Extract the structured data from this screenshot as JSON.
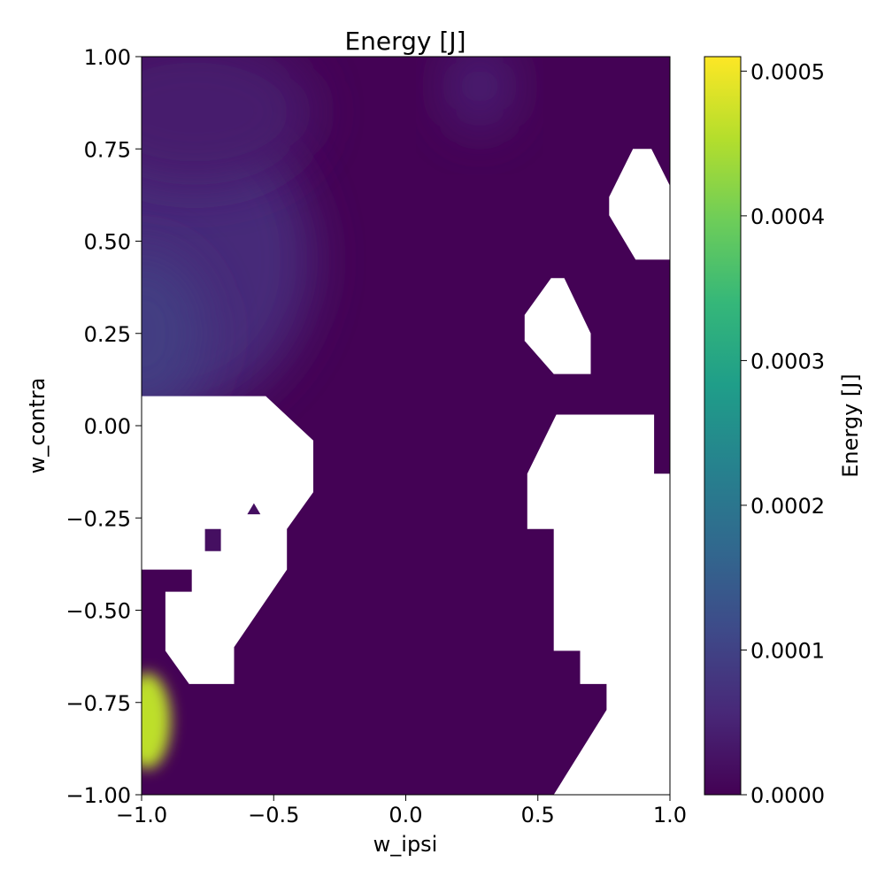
{
  "chart_data": {
    "type": "heatmap",
    "title": "Energy [J]",
    "xlabel": "w_ipsi",
    "ylabel": "w_contra",
    "xlim": [
      -1.0,
      1.0
    ],
    "ylim": [
      -1.0,
      1.0
    ],
    "x_ticks": [
      {
        "value": -1.0,
        "label": "−1.0"
      },
      {
        "value": -0.5,
        "label": "−0.5"
      },
      {
        "value": 0.0,
        "label": "0.0"
      },
      {
        "value": 0.5,
        "label": "0.5"
      },
      {
        "value": 1.0,
        "label": "1.0"
      }
    ],
    "y_ticks": [
      {
        "value": 1.0,
        "label": "1.00"
      },
      {
        "value": 0.75,
        "label": "0.75"
      },
      {
        "value": 0.5,
        "label": "0.50"
      },
      {
        "value": 0.25,
        "label": "0.25"
      },
      {
        "value": 0.0,
        "label": "0.00"
      },
      {
        "value": -0.25,
        "label": "−0.25"
      },
      {
        "value": -0.5,
        "label": "−0.50"
      },
      {
        "value": -0.75,
        "label": "−0.75"
      },
      {
        "value": -1.0,
        "label": "−1.00"
      }
    ],
    "colorbar": {
      "label": "Energy [J]",
      "colormap": "viridis",
      "range": [
        0.0,
        0.00051
      ],
      "ticks": [
        {
          "value": 0.0,
          "label": "0.0000"
        },
        {
          "value": 0.0001,
          "label": "0.0001"
        },
        {
          "value": 0.0002,
          "label": "0.0002"
        },
        {
          "value": 0.0003,
          "label": "0.0003"
        },
        {
          "value": 0.0004,
          "label": "0.0004"
        },
        {
          "value": 0.0005,
          "label": "0.0005"
        }
      ]
    },
    "background_value": 2e-06,
    "features": [
      {
        "name": "upper-left-band",
        "kind": "ellipse",
        "x": -0.9,
        "y": 0.45,
        "rx": 0.55,
        "ry": 0.42,
        "value": 6e-05
      },
      {
        "name": "upper-left-edge",
        "kind": "ellipse",
        "x": -1.0,
        "y": 0.25,
        "rx": 0.25,
        "ry": 0.22,
        "value": 9e-05
      },
      {
        "name": "upper-left-top",
        "kind": "ellipse",
        "x": -0.8,
        "y": 0.85,
        "rx": 0.45,
        "ry": 0.2,
        "value": 4e-05
      },
      {
        "name": "top-center-streak",
        "kind": "ellipse",
        "x": 0.28,
        "y": 0.92,
        "rx": 0.12,
        "ry": 0.12,
        "value": 5e-05
      },
      {
        "name": "hot-spot",
        "kind": "ellipse",
        "x": -0.98,
        "y": -0.8,
        "rx": 0.09,
        "ry": 0.13,
        "value": 0.00046
      }
    ],
    "missing_regions": [
      {
        "name": "upper-right-hole",
        "polygon": [
          [
            0.77,
            0.62
          ],
          [
            0.86,
            0.75
          ],
          [
            0.93,
            0.75
          ],
          [
            1.0,
            0.65
          ],
          [
            1.0,
            0.45
          ],
          [
            0.87,
            0.45
          ],
          [
            0.77,
            0.57
          ]
        ]
      },
      {
        "name": "mid-right-hole",
        "polygon": [
          [
            0.45,
            0.3
          ],
          [
            0.55,
            0.4
          ],
          [
            0.6,
            0.4
          ],
          [
            0.7,
            0.25
          ],
          [
            0.7,
            0.14
          ],
          [
            0.56,
            0.14
          ],
          [
            0.45,
            0.23
          ]
        ]
      },
      {
        "name": "lower-left-block",
        "polygon": [
          [
            -1.0,
            0.08
          ],
          [
            -0.53,
            0.08
          ],
          [
            -0.35,
            -0.04
          ],
          [
            -0.35,
            -0.18
          ],
          [
            -0.45,
            -0.28
          ],
          [
            -0.45,
            -0.39
          ],
          [
            -0.65,
            -0.6
          ],
          [
            -0.65,
            -0.7
          ],
          [
            -0.82,
            -0.7
          ],
          [
            -0.91,
            -0.61
          ],
          [
            -0.91,
            -0.45
          ],
          [
            -0.81,
            -0.45
          ],
          [
            -0.81,
            -0.39
          ],
          [
            -1.0,
            -0.39
          ]
        ]
      },
      {
        "name": "lower-right-region",
        "polygon": [
          [
            0.46,
            -0.13
          ],
          [
            0.57,
            0.03
          ],
          [
            0.94,
            0.03
          ],
          [
            0.94,
            -0.13
          ],
          [
            1.0,
            -0.13
          ],
          [
            1.0,
            -1.0
          ],
          [
            0.56,
            -1.0
          ],
          [
            0.76,
            -0.77
          ],
          [
            0.76,
            -0.7
          ],
          [
            0.66,
            -0.7
          ],
          [
            0.66,
            -0.61
          ],
          [
            0.56,
            -0.61
          ],
          [
            0.56,
            -0.28
          ],
          [
            0.46,
            -0.28
          ]
        ]
      }
    ],
    "islands": [
      {
        "name": "island-small-square",
        "polygon": [
          [
            -0.76,
            -0.28
          ],
          [
            -0.7,
            -0.28
          ],
          [
            -0.7,
            -0.34
          ],
          [
            -0.76,
            -0.34
          ]
        ],
        "value": 2e-05
      },
      {
        "name": "island-tiny-triangle",
        "polygon": [
          [
            -0.6,
            -0.24
          ],
          [
            -0.575,
            -0.21
          ],
          [
            -0.55,
            -0.24
          ]
        ],
        "value": 2e-05
      }
    ]
  }
}
